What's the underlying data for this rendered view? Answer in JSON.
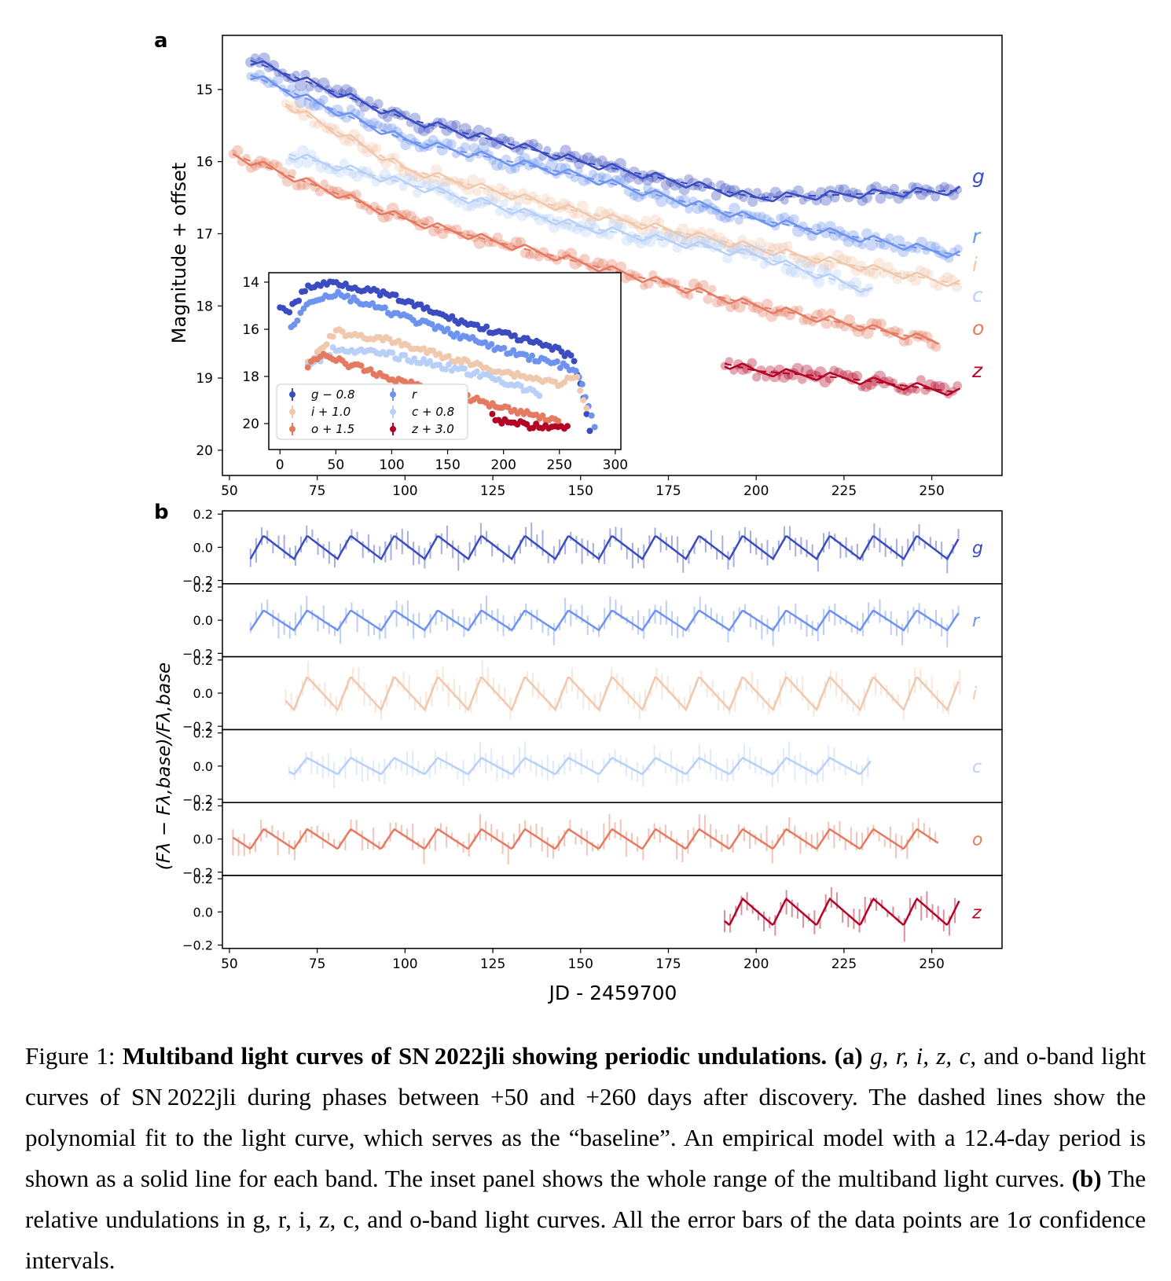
{
  "panel_labels": {
    "a": "a",
    "b": "b"
  },
  "figure_a": {
    "ylabel": "Magnitude + offset",
    "y_ticks": [
      "15",
      "16",
      "17",
      "18",
      "19",
      "20"
    ],
    "x_ticks": [
      "50",
      "75",
      "100",
      "125",
      "150",
      "175",
      "200",
      "225",
      "250"
    ],
    "band_labels": [
      "g",
      "r",
      "i",
      "c",
      "o",
      "z"
    ],
    "inset": {
      "y_ticks": [
        "14",
        "16",
        "18",
        "20"
      ],
      "x_ticks": [
        "0",
        "50",
        "100",
        "150",
        "200",
        "250",
        "300"
      ],
      "legend": [
        "g − 0.8",
        "r",
        "i + 1.0",
        "c + 0.8",
        "o + 1.5",
        "z + 3.0"
      ]
    }
  },
  "figure_b": {
    "ylabel": "(Fλ − Fλ,base)/Fλ,base",
    "xlabel": "JD - 2459700",
    "y_ticks": [
      "0.2",
      "0.0",
      "−0.2"
    ],
    "x_ticks": [
      "50",
      "75",
      "100",
      "125",
      "150",
      "175",
      "200",
      "225",
      "250"
    ],
    "band_labels": [
      "g",
      "r",
      "i",
      "c",
      "o",
      "z"
    ]
  },
  "colors": {
    "g": "#3a4cc0",
    "r": "#6e93ef",
    "i": "#f0c8ad",
    "c": "#b8d0f7",
    "o": "#e47b61",
    "z": "#b40426"
  },
  "chart_data": [
    {
      "type": "scatter",
      "panel": "a",
      "ylabel": "Magnitude + offset",
      "xlim": [
        48,
        270
      ],
      "ylim": [
        20.35,
        14.25
      ],
      "series": [
        {
          "name": "g",
          "x": [
            56,
            100,
            150,
            200,
            258
          ],
          "y": [
            14.6,
            15.4,
            16.0,
            16.5,
            16.4
          ]
        },
        {
          "name": "r",
          "x": [
            56,
            100,
            150,
            200,
            258
          ],
          "y": [
            14.8,
            15.7,
            16.2,
            16.8,
            17.3
          ]
        },
        {
          "name": "i",
          "x": [
            66,
            100,
            150,
            200,
            258
          ],
          "y": [
            15.2,
            16.1,
            16.7,
            17.2,
            17.7
          ]
        },
        {
          "name": "c",
          "x": [
            67,
            100,
            150,
            200,
            233
          ],
          "y": [
            15.9,
            16.3,
            16.9,
            17.3,
            17.8
          ]
        },
        {
          "name": "o",
          "x": [
            51,
            100,
            150,
            200,
            252
          ],
          "y": [
            15.9,
            16.8,
            17.4,
            18.0,
            18.5
          ]
        },
        {
          "name": "z",
          "x": [
            191,
            200,
            225,
            258
          ],
          "y": [
            18.8,
            18.9,
            19.0,
            19.2
          ]
        }
      ],
      "inset": {
        "xlim": [
          -10,
          305
        ],
        "ylim": [
          21.1,
          13.6
        ],
        "series": [
          {
            "name": "g − 0.8",
            "x": [
              0,
              8,
              25,
              50,
              100,
              150,
              200,
              250,
              262,
              270,
              280
            ],
            "y": [
              15.0,
              15.2,
              14.2,
              14.0,
              14.6,
              15.5,
              16.2,
              16.9,
              17.2,
              18.5,
              21.0
            ]
          },
          {
            "name": "r",
            "x": [
              10,
              25,
              50,
              100,
              150,
              200,
              250,
              265,
              275,
              283
            ],
            "y": [
              16.0,
              14.8,
              14.5,
              15.3,
              16.1,
              16.9,
              17.5,
              17.8,
              19.0,
              20.5
            ]
          },
          {
            "name": "i + 1.0",
            "x": [
              25,
              50,
              100,
              150,
              200,
              250,
              265,
              275
            ],
            "y": [
              17.5,
              16.1,
              16.5,
              17.2,
              17.8,
              18.3,
              18.0,
              19.5
            ]
          },
          {
            "name": "c + 0.8",
            "x": [
              25,
              50,
              100,
              150,
              200,
              233
            ],
            "y": [
              17.6,
              16.8,
              17.1,
              17.6,
              18.2,
              18.8
            ]
          },
          {
            "name": "o + 1.5",
            "x": [
              25,
              40,
              50,
              100,
              150,
              200,
              250
            ],
            "y": [
              17.5,
              17.0,
              17.3,
              18.1,
              18.7,
              19.3,
              19.9
            ]
          },
          {
            "name": "z + 3.0",
            "x": [
              190,
              200,
              225,
              258
            ],
            "y": [
              19.7,
              19.9,
              20.1,
              20.2
            ]
          }
        ]
      }
    },
    {
      "type": "line",
      "panel": "b",
      "xlabel": "JD - 2459700",
      "ylabel": "(Fλ − Fλ,base)/Fλ,base",
      "xlim": [
        48,
        270
      ],
      "ylim": [
        -0.22,
        0.22
      ],
      "period_days": 12.4,
      "series": [
        {
          "name": "g",
          "x_range": [
            56,
            258
          ],
          "amplitude": 0.07
        },
        {
          "name": "r",
          "x_range": [
            56,
            258
          ],
          "amplitude": 0.06
        },
        {
          "name": "i",
          "x_range": [
            66,
            258
          ],
          "amplitude": 0.1
        },
        {
          "name": "c",
          "x_range": [
            67,
            233
          ],
          "amplitude": 0.05
        },
        {
          "name": "o",
          "x_range": [
            51,
            252
          ],
          "amplitude": 0.06
        },
        {
          "name": "z",
          "x_range": [
            191,
            258
          ],
          "amplitude": 0.08
        }
      ]
    }
  ],
  "caption": {
    "fig_label": "Figure 1:",
    "title": "Multiband light curves of SN 2022jli showing periodic undulations.",
    "part_a_label": "(a)",
    "part_a_bands": "g, r, i, z, c,",
    "part_a_text": "and o-band light curves of SN 2022jli during phases between +50 and +260 days after discovery. The dashed lines show the polynomial fit to the light curve, which serves as the “baseline”. An empirical model with a 12.4-day period is shown as a solid line for each band. The inset panel shows the whole range of the multiband light curves.",
    "part_b_label": "(b)",
    "part_b_text": "The relative undulations in g, r, i, z, c, and o-band light curves. All the error bars of the data points are 1σ confidence intervals."
  }
}
